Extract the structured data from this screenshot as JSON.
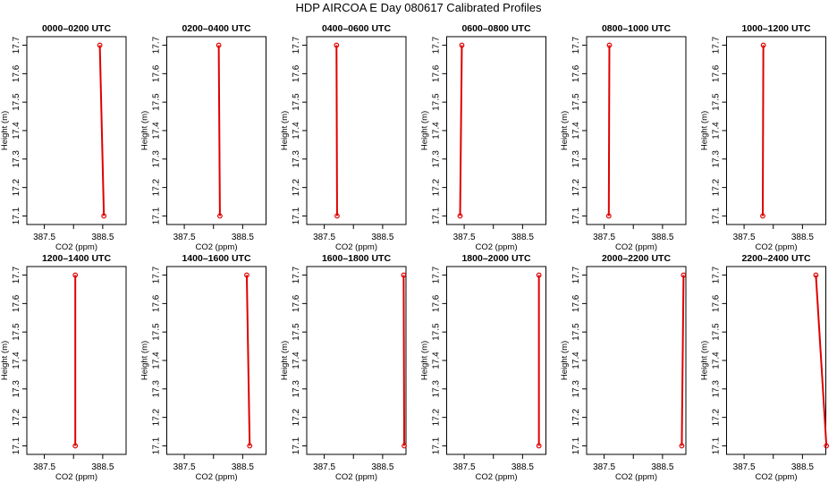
{
  "figure": {
    "title": "HDP AIRCOA E  Day 080617  Calibrated Profiles"
  },
  "chart_data": [
    {
      "type": "line",
      "title": "0000–0200 UTC",
      "xlabel": "CO2 (ppm)",
      "ylabel": "Height (m)",
      "xlim": [
        387.2,
        388.9
      ],
      "ylim": [
        17.07,
        17.73
      ],
      "xticks": [
        "387.5",
        "388.5"
      ],
      "yticks": [
        "17.1",
        "17.2",
        "17.3",
        "17.4",
        "17.5",
        "17.6",
        "17.7"
      ],
      "series": [
        {
          "x": [
            388.45,
            388.52
          ],
          "y": [
            17.7,
            17.1
          ],
          "markers": "endpoints",
          "color": "#e00000"
        }
      ]
    },
    {
      "type": "line",
      "title": "0200–0400 UTC",
      "xlabel": "CO2 (ppm)",
      "ylabel": "Height (m)",
      "xlim": [
        387.2,
        388.9
      ],
      "ylim": [
        17.07,
        17.73
      ],
      "xticks": [
        "387.5",
        "388.5"
      ],
      "yticks": [
        "17.1",
        "17.2",
        "17.3",
        "17.4",
        "17.5",
        "17.6",
        "17.7"
      ],
      "series": [
        {
          "x": [
            388.09,
            388.11
          ],
          "y": [
            17.7,
            17.1
          ],
          "markers": "endpoints",
          "color": "#e00000"
        }
      ]
    },
    {
      "type": "line",
      "title": "0400–0600 UTC",
      "xlabel": "CO2 (ppm)",
      "ylabel": "Height (m)",
      "xlim": [
        387.2,
        388.9
      ],
      "ylim": [
        17.07,
        17.73
      ],
      "xticks": [
        "387.5",
        "388.5"
      ],
      "yticks": [
        "17.1",
        "17.2",
        "17.3",
        "17.4",
        "17.5",
        "17.6",
        "17.7"
      ],
      "series": [
        {
          "x": [
            387.71,
            387.72
          ],
          "y": [
            17.7,
            17.1
          ],
          "markers": "endpoints",
          "color": "#e00000"
        }
      ]
    },
    {
      "type": "line",
      "title": "0600–0800 UTC",
      "xlabel": "CO2 (ppm)",
      "ylabel": "Height (m)",
      "xlim": [
        387.2,
        388.9
      ],
      "ylim": [
        17.07,
        17.73
      ],
      "xticks": [
        "387.5",
        "388.5"
      ],
      "yticks": [
        "17.1",
        "17.2",
        "17.3",
        "17.4",
        "17.5",
        "17.6",
        "17.7"
      ],
      "series": [
        {
          "x": [
            387.46,
            387.43
          ],
          "y": [
            17.7,
            17.1
          ],
          "markers": "endpoints",
          "color": "#e00000"
        }
      ]
    },
    {
      "type": "line",
      "title": "0800–1000 UTC",
      "xlabel": "CO2 (ppm)",
      "ylabel": "Height (m)",
      "xlim": [
        387.2,
        388.9
      ],
      "ylim": [
        17.07,
        17.73
      ],
      "xticks": [
        "387.5",
        "388.5"
      ],
      "yticks": [
        "17.1",
        "17.2",
        "17.3",
        "17.4",
        "17.5",
        "17.6",
        "17.7"
      ],
      "series": [
        {
          "x": [
            387.59,
            387.58
          ],
          "y": [
            17.7,
            17.1
          ],
          "markers": "endpoints",
          "color": "#e00000"
        }
      ]
    },
    {
      "type": "line",
      "title": "1000–1200 UTC",
      "xlabel": "CO2 (ppm)",
      "ylabel": "Height (m)",
      "xlim": [
        387.2,
        388.9
      ],
      "ylim": [
        17.07,
        17.73
      ],
      "xticks": [
        "387.5",
        "388.5"
      ],
      "yticks": [
        "17.1",
        "17.2",
        "17.3",
        "17.4",
        "17.5",
        "17.6",
        "17.7"
      ],
      "series": [
        {
          "x": [
            387.83,
            387.82
          ],
          "y": [
            17.7,
            17.1
          ],
          "markers": "endpoints",
          "color": "#e00000"
        }
      ]
    },
    {
      "type": "line",
      "title": "1200–1400 UTC",
      "xlabel": "CO2 (ppm)",
      "ylabel": "Height (m)",
      "xlim": [
        387.2,
        388.9
      ],
      "ylim": [
        17.07,
        17.73
      ],
      "xticks": [
        "387.5",
        "388.5"
      ],
      "yticks": [
        "17.1",
        "17.2",
        "17.3",
        "17.4",
        "17.5",
        "17.6",
        "17.7"
      ],
      "series": [
        {
          "x": [
            388.03,
            388.03
          ],
          "y": [
            17.7,
            17.1
          ],
          "markers": "endpoints",
          "color": "#e00000"
        }
      ]
    },
    {
      "type": "line",
      "title": "1400–1600 UTC",
      "xlabel": "CO2 (ppm)",
      "ylabel": "Height (m)",
      "xlim": [
        387.2,
        388.9
      ],
      "ylim": [
        17.07,
        17.73
      ],
      "xticks": [
        "387.5",
        "388.5"
      ],
      "yticks": [
        "17.1",
        "17.2",
        "17.3",
        "17.4",
        "17.5",
        "17.6",
        "17.7"
      ],
      "series": [
        {
          "x": [
            388.57,
            388.62
          ],
          "y": [
            17.7,
            17.1
          ],
          "markers": "endpoints",
          "color": "#e00000"
        }
      ]
    },
    {
      "type": "line",
      "title": "1600–1800 UTC",
      "xlabel": "CO2 (ppm)",
      "ylabel": "Height (m)",
      "xlim": [
        387.2,
        388.9
      ],
      "ylim": [
        17.07,
        17.73
      ],
      "xticks": [
        "387.5",
        "388.5"
      ],
      "yticks": [
        "17.1",
        "17.2",
        "17.3",
        "17.4",
        "17.5",
        "17.6",
        "17.7"
      ],
      "series": [
        {
          "x": [
            388.86,
            388.87
          ],
          "y": [
            17.7,
            17.1
          ],
          "markers": "endpoints",
          "color": "#e00000"
        }
      ]
    },
    {
      "type": "line",
      "title": "1800–2000 UTC",
      "xlabel": "CO2 (ppm)",
      "ylabel": "Height (m)",
      "xlim": [
        387.2,
        388.9
      ],
      "ylim": [
        17.07,
        17.73
      ],
      "xticks": [
        "387.5",
        "388.5"
      ],
      "yticks": [
        "17.1",
        "17.2",
        "17.3",
        "17.4",
        "17.5",
        "17.6",
        "17.7"
      ],
      "series": [
        {
          "x": [
            388.78,
            388.78
          ],
          "y": [
            17.7,
            17.1
          ],
          "markers": "endpoints",
          "color": "#e00000"
        }
      ]
    },
    {
      "type": "line",
      "title": "2000–2200 UTC",
      "xlabel": "CO2 (ppm)",
      "ylabel": "Height (m)",
      "xlim": [
        387.2,
        388.9
      ],
      "ylim": [
        17.07,
        17.73
      ],
      "xticks": [
        "387.5",
        "388.5"
      ],
      "yticks": [
        "17.1",
        "17.2",
        "17.3",
        "17.4",
        "17.5",
        "17.6",
        "17.7"
      ],
      "series": [
        {
          "x": [
            388.86,
            388.83
          ],
          "y": [
            17.7,
            17.1
          ],
          "markers": "endpoints",
          "color": "#e00000"
        }
      ]
    },
    {
      "type": "line",
      "title": "2200–2400 UTC",
      "xlabel": "CO2 (ppm)",
      "ylabel": "Height (m)",
      "xlim": [
        387.2,
        388.9
      ],
      "ylim": [
        17.07,
        17.73
      ],
      "xticks": [
        "387.5",
        "388.5"
      ],
      "yticks": [
        "17.1",
        "17.2",
        "17.3",
        "17.4",
        "17.5",
        "17.6",
        "17.7"
      ],
      "series": [
        {
          "x": [
            388.73,
            388.91
          ],
          "y": [
            17.7,
            17.1
          ],
          "markers": "endpoints",
          "color": "#e00000"
        }
      ]
    }
  ]
}
